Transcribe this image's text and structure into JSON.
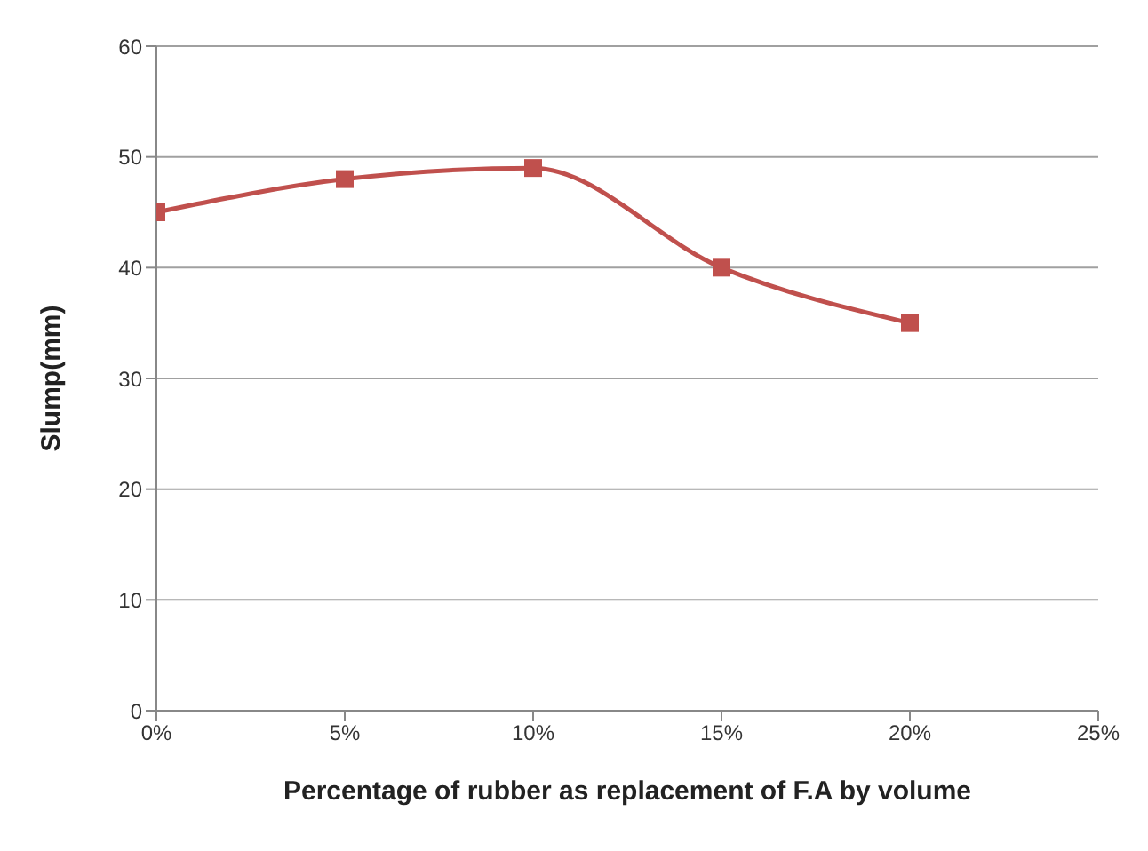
{
  "chart_data": {
    "type": "line",
    "xlabel": "Percentage of rubber as replacement of F.A by volume",
    "ylabel": "Slump(mm)",
    "x": [
      0,
      5,
      10,
      15,
      20
    ],
    "series": [
      {
        "color": "#c0504d",
        "values": [
          45,
          48,
          49,
          40,
          35
        ]
      }
    ],
    "xlim": [
      0,
      25
    ],
    "xticks": [
      {
        "value": 0,
        "label": "0%"
      },
      {
        "value": 5,
        "label": "5%"
      },
      {
        "value": 10,
        "label": "10%"
      },
      {
        "value": 15,
        "label": "15%"
      },
      {
        "value": 20,
        "label": "20%"
      },
      {
        "value": 25,
        "label": "25%"
      }
    ],
    "ylim": [
      0,
      60
    ],
    "yticks": [
      0,
      10,
      20,
      30,
      40,
      50,
      60
    ],
    "grid": "y",
    "marker": "square",
    "line_style": "solid"
  }
}
